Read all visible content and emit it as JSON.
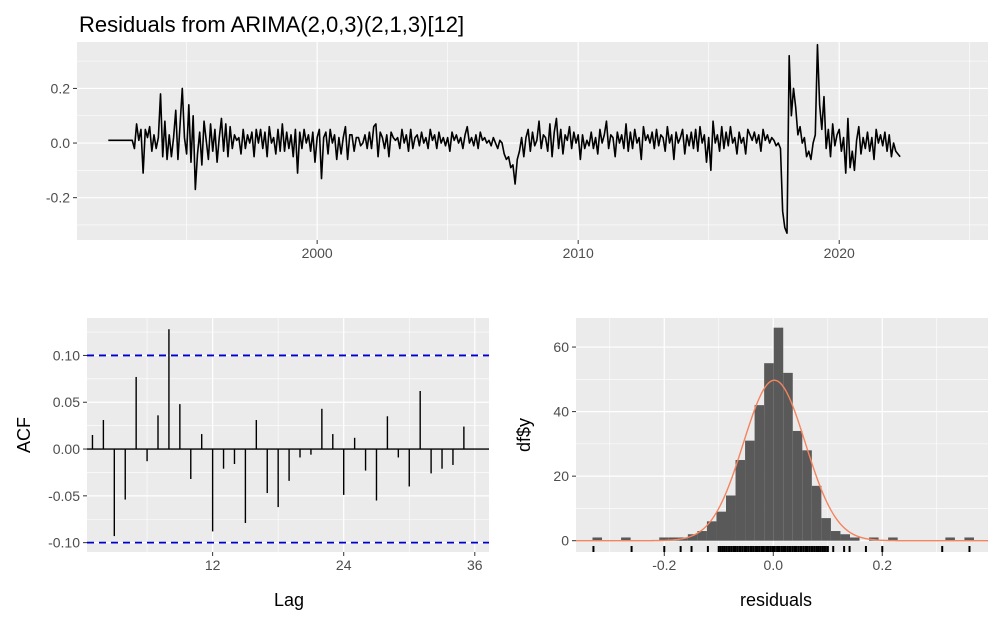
{
  "chart_data": [
    {
      "type": "line",
      "title": "Residuals from ARIMA(2,0,3)(2,1,3)[12]",
      "xlabel": "",
      "ylabel": "",
      "xlim": [
        1990.8,
        2025.7
      ],
      "ylim": [
        -0.355,
        0.37
      ],
      "x_ticks": [
        2000,
        2010,
        2020
      ],
      "x_tick_labels": [
        "2000",
        "2010",
        "2020"
      ],
      "y_ticks": [
        -0.2,
        0.0,
        0.2
      ],
      "y_tick_labels": [
        "-0.2",
        "0.0",
        "0.2"
      ],
      "grid": true,
      "series": [
        {
          "color": "#000000",
          "x_start": 1992.0,
          "x_step": 0.0833333,
          "values": [
            0.01,
            0.01,
            0.01,
            0.01,
            0.01,
            0.01,
            0.01,
            0.01,
            0.01,
            0.01,
            0.01,
            0.01,
            -0.02,
            0.07,
            0.01,
            0.05,
            -0.11,
            0.05,
            0.02,
            0.06,
            -0.03,
            0.03,
            -0.02,
            0.02,
            0.18,
            -0.05,
            0.08,
            -0.06,
            0.03,
            -0.05,
            0.02,
            0.12,
            -0.06,
            0.07,
            0.2,
            0.02,
            -0.04,
            0.14,
            -0.07,
            0.1,
            -0.17,
            -0.04,
            0.04,
            -0.08,
            0.08,
            0.01,
            -0.06,
            0.07,
            -0.03,
            0.05,
            -0.07,
            0.02,
            0.09,
            -0.03,
            0.07,
            -0.05,
            0.06,
            -0.02,
            0.03,
            0.01,
            0.02,
            -0.04,
            0.05,
            -0.02,
            0.03,
            0.0,
            0.04,
            -0.05,
            0.05,
            0.0,
            0.05,
            -0.02,
            0.04,
            -0.05,
            0.06,
            0.0,
            0.02,
            -0.04,
            0.05,
            -0.03,
            0.07,
            -0.03,
            0.04,
            -0.02,
            0.03,
            -0.05,
            0.05,
            -0.11,
            0.04,
            -0.02,
            0.05,
            0.0,
            0.03,
            -0.03,
            0.04,
            -0.07,
            0.02,
            0.05,
            -0.13,
            0.02,
            0.04,
            -0.04,
            0.05,
            0.0,
            0.03,
            -0.06,
            0.02,
            -0.04,
            0.02,
            0.06,
            -0.06,
            0.03,
            0.03,
            -0.03,
            0.02,
            0.02,
            -0.01,
            0.0,
            0.03,
            -0.02,
            0.04,
            -0.02,
            0.06,
            0.07,
            -0.05,
            0.04,
            0.02,
            -0.02,
            0.03,
            -0.05,
            0.04,
            0.02,
            0.01,
            0.02,
            -0.02,
            0.05,
            0.0,
            0.03,
            -0.03,
            0.05,
            -0.02,
            0.02,
            0.03,
            -0.01,
            0.04,
            0.0,
            0.02,
            -0.02,
            0.05,
            0.01,
            0.03,
            -0.02,
            0.04,
            0.0,
            0.02,
            -0.01,
            0.02,
            -0.03,
            0.04,
            0.01,
            0.03,
            0.0,
            0.02,
            -0.02,
            0.03,
            0.06,
            0.0,
            0.02,
            -0.01,
            0.03,
            -0.02,
            0.04,
            0.01,
            0.02,
            0.0,
            0.01,
            -0.01,
            0.02,
            0.0,
            -0.02,
            0.01,
            0.0,
            -0.04,
            -0.06,
            -0.05,
            -0.09,
            -0.08,
            -0.15,
            -0.06,
            -0.03,
            0.02,
            -0.05,
            0.02,
            0.05,
            -0.03,
            0.04,
            -0.01,
            0.01,
            0.08,
            -0.02,
            0.03,
            0.02,
            -0.03,
            0.07,
            -0.05,
            0.04,
            0.09,
            -0.02,
            0.05,
            -0.04,
            0.03,
            0.01,
            0.06,
            -0.02,
            0.04,
            0.0,
            0.03,
            -0.06,
            0.03,
            -0.02,
            0.01,
            -0.01,
            0.04,
            -0.02,
            0.02,
            -0.04,
            0.05,
            0.0,
            0.03,
            0.08,
            -0.02,
            0.03,
            0.02,
            -0.05,
            0.04,
            0.0,
            0.03,
            -0.02,
            0.07,
            -0.03,
            0.04,
            -0.02,
            0.05,
            0.0,
            0.02,
            -0.06,
            0.06,
            0.01,
            0.03,
            0.0,
            0.04,
            -0.02,
            0.05,
            -0.01,
            0.03,
            0.02,
            -0.03,
            0.06,
            0.0,
            0.03,
            -0.06,
            0.04,
            0.0,
            0.02,
            0.05,
            -0.04,
            0.03,
            -0.01,
            0.04,
            -0.02,
            0.05,
            -0.03,
            0.06,
            0.0,
            0.03,
            -0.07,
            0.02,
            -0.1,
            0.08,
            0.0,
            0.03,
            -0.03,
            0.06,
            -0.02,
            0.04,
            -0.01,
            0.06,
            0.0,
            0.02,
            -0.04,
            0.04,
            0.0,
            0.02,
            -0.04,
            0.05,
            0.03,
            0.01,
            0.04,
            0.0,
            0.03,
            -0.03,
            0.05,
            0.01,
            0.03,
            0.0,
            0.02,
            0.01,
            -0.01,
            0.0,
            -0.02,
            -0.25,
            -0.31,
            -0.33,
            0.32,
            0.1,
            0.2,
            0.13,
            0.03,
            0.06,
            0.0,
            0.02,
            -0.05,
            -0.03,
            -0.06,
            0.0,
            0.03,
            0.36,
            0.14,
            0.05,
            0.17,
            -0.02,
            0.05,
            -0.05,
            0.07,
            -0.01,
            0.03,
            0.05,
            -0.03,
            0.02,
            -0.11,
            0.09,
            -0.09,
            -0.03,
            -0.1,
            0.01,
            0.06,
            -0.04,
            0.02,
            -0.02,
            0.04,
            -0.03,
            0.02,
            -0.06,
            0.05,
            0.0,
            0.03,
            -0.01,
            0.04,
            -0.03,
            0.03,
            -0.05,
            0.0,
            -0.03,
            -0.04,
            -0.05
          ]
        }
      ]
    },
    {
      "type": "bar",
      "title": "",
      "xlabel": "Lag",
      "ylabel": "ACF",
      "xlim": [
        0.5,
        37.3
      ],
      "ylim": [
        -0.11,
        0.14
      ],
      "x_ticks": [
        12,
        24,
        36
      ],
      "x_tick_labels": [
        "12",
        "24",
        "36"
      ],
      "y_ticks": [
        -0.1,
        -0.05,
        0.0,
        0.05,
        0.1
      ],
      "y_tick_labels": [
        "-0.10",
        "-0.05",
        "0.00",
        "0.05",
        "0.10"
      ],
      "grid": true,
      "lags": [
        1,
        2,
        3,
        4,
        5,
        6,
        7,
        8,
        9,
        10,
        11,
        12,
        13,
        14,
        15,
        16,
        17,
        18,
        19,
        20,
        21,
        22,
        23,
        24,
        25,
        26,
        27,
        28,
        29,
        30,
        31,
        32,
        33,
        34,
        35,
        36
      ],
      "values": [
        0.015,
        0.031,
        -0.093,
        -0.054,
        0.077,
        -0.013,
        0.036,
        0.128,
        0.048,
        -0.032,
        0.016,
        -0.088,
        -0.021,
        -0.016,
        -0.079,
        0.031,
        -0.047,
        -0.062,
        -0.034,
        -0.009,
        -0.006,
        0.043,
        0.016,
        -0.049,
        0.012,
        -0.023,
        -0.055,
        0.035,
        -0.009,
        -0.04,
        0.062,
        -0.026,
        -0.021,
        -0.017,
        0.024,
        0.0
      ],
      "confidence_limit": 0.1,
      "confidence_color": "#0000cc"
    },
    {
      "type": "bar",
      "title": "",
      "xlabel": "residuals",
      "ylabel": "df$y",
      "xlim": [
        -0.362,
        0.394
      ],
      "ylim": [
        -3.5,
        69
      ],
      "x_ticks": [
        -0.2,
        0.0,
        0.2
      ],
      "x_tick_labels": [
        "-0.2",
        "0.0",
        "0.2"
      ],
      "y_ticks": [
        0,
        20,
        40,
        60
      ],
      "y_tick_labels": [
        "0",
        "20",
        "40",
        "60"
      ],
      "grid": true,
      "bin_width": 0.0175,
      "bin_centers": [
        -0.323,
        -0.2705,
        -0.2005,
        -0.183,
        -0.1655,
        -0.148,
        -0.1305,
        -0.113,
        -0.0955,
        -0.078,
        -0.0605,
        -0.043,
        -0.0255,
        -0.008,
        0.0095,
        0.027,
        0.0445,
        0.062,
        0.0795,
        0.097,
        0.1145,
        0.132,
        0.1495,
        0.1845,
        0.2195,
        0.3245,
        0.3595
      ],
      "counts": [
        1,
        1,
        1,
        1,
        1,
        2,
        3,
        6,
        9,
        14,
        25,
        31,
        42,
        55,
        66,
        52,
        34,
        28,
        17,
        7,
        3,
        2,
        1,
        1,
        1,
        1,
        1
      ],
      "bar_color": "#595959",
      "density_curve": {
        "type": "normal",
        "mean": 0.002,
        "sd": 0.057,
        "color": "#f4845f"
      },
      "rug_values": [
        -0.33,
        -0.26,
        -0.2,
        -0.17,
        -0.15,
        -0.12,
        -0.1,
        -0.09,
        -0.08,
        -0.07,
        -0.06,
        -0.05,
        -0.04,
        -0.03,
        -0.02,
        -0.01,
        0.0,
        0.01,
        0.02,
        0.03,
        0.04,
        0.05,
        0.06,
        0.07,
        0.08,
        0.09,
        0.1,
        0.11,
        0.13,
        0.14,
        0.17,
        0.2,
        0.31,
        0.36
      ]
    }
  ]
}
